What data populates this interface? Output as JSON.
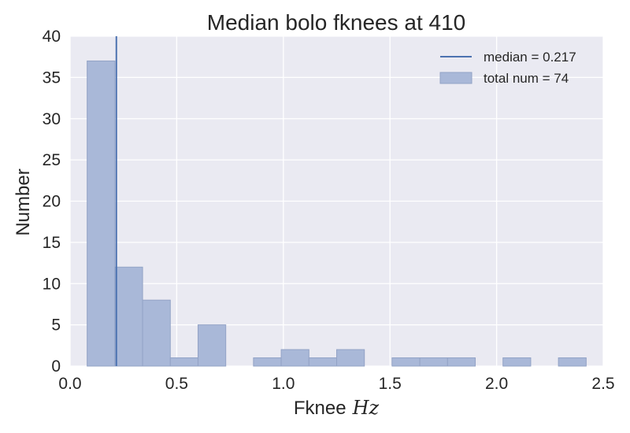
{
  "chart_data": {
    "type": "bar",
    "title": "Median bolo fknees at 410",
    "xlabel": "Fknee",
    "xlabel_unit": "Hz",
    "ylabel": "Number",
    "xlim": [
      0.0,
      2.5
    ],
    "ylim": [
      0,
      40
    ],
    "xticks": [
      0.0,
      0.5,
      1.0,
      1.5,
      2.0,
      2.5
    ],
    "xtick_labels": [
      "0.0",
      "0.5",
      "1.0",
      "1.5",
      "2.0",
      "2.5"
    ],
    "yticks": [
      0,
      5,
      10,
      15,
      20,
      25,
      30,
      35,
      40
    ],
    "ytick_labels": [
      "0",
      "5",
      "10",
      "15",
      "20",
      "25",
      "30",
      "35",
      "40"
    ],
    "grid": true,
    "legend_position": "top-right",
    "bin_edges": [
      0.08,
      0.21,
      0.34,
      0.47,
      0.6,
      0.73,
      0.86,
      0.99,
      1.12,
      1.25,
      1.38,
      1.51,
      1.64,
      1.77,
      1.9,
      2.03,
      2.16,
      2.29,
      2.42
    ],
    "counts": [
      37,
      12,
      8,
      1,
      5,
      0,
      1,
      2,
      1,
      2,
      0,
      1,
      1,
      1,
      0,
      1,
      0,
      1
    ],
    "median": 0.217,
    "legend": [
      {
        "kind": "line",
        "label": "median = 0.217"
      },
      {
        "kind": "patch",
        "label": "total num = 74"
      }
    ],
    "colors": {
      "background": "#eaeaf2",
      "grid": "#ffffff",
      "bar_fill": "#a9b8d8",
      "bar_edge": "#93a3c6",
      "median_line": "#4c72b0"
    }
  }
}
